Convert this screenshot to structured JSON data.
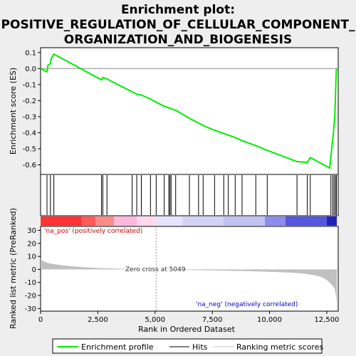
{
  "chart_data": {
    "type": "line",
    "title_lines": [
      "Enrichment plot:",
      "POSITIVE_REGULATION_OF_CELLULAR_COMPONENT_",
      "ORGANIZATION_AND_BIOGENESIS"
    ],
    "top_panel": {
      "ylabel": "Enrichment score (ES)",
      "ylim": [
        -0.66,
        0.13
      ],
      "yticks": [
        0.1,
        0.0,
        -0.1,
        -0.2,
        -0.3,
        -0.4,
        -0.5,
        -0.6
      ],
      "ytick_labels": [
        "0.1",
        "0.0",
        "-0.1",
        "-0.2",
        "-0.3",
        "-0.4",
        "-0.5",
        "-0.6"
      ],
      "series": [
        {
          "name": "Enrichment profile",
          "color": "#00ee00",
          "x": [
            0,
            280,
            320,
            430,
            460,
            580,
            2660,
            2720,
            2900,
            4000,
            4200,
            4400,
            4800,
            5050,
            5400,
            5600,
            5700,
            5900,
            6500,
            6900,
            7100,
            7600,
            8000,
            8200,
            8500,
            8800,
            9400,
            9900,
            11200,
            11650,
            11780,
            12630,
            12700,
            12780,
            12850,
            12920
          ],
          "y": [
            0.0,
            -0.02,
            0.02,
            0.03,
            0.06,
            0.09,
            -0.07,
            -0.055,
            -0.065,
            -0.145,
            -0.16,
            -0.165,
            -0.19,
            -0.21,
            -0.235,
            -0.245,
            -0.25,
            -0.26,
            -0.31,
            -0.34,
            -0.355,
            -0.385,
            -0.405,
            -0.415,
            -0.43,
            -0.45,
            -0.48,
            -0.51,
            -0.58,
            -0.585,
            -0.555,
            -0.62,
            -0.52,
            -0.415,
            -0.3,
            0.0
          ]
        }
      ]
    },
    "hits": [
      280,
      430,
      580,
      2660,
      2720,
      2900,
      4000,
      4200,
      4400,
      4800,
      5050,
      5400,
      5600,
      5650,
      5700,
      5900,
      6500,
      6900,
      7100,
      7600,
      8000,
      8200,
      8500,
      8800,
      9400,
      9900,
      11200,
      11650,
      11780,
      12680,
      12760,
      12820,
      12880,
      12920
    ],
    "bottom_panel": {
      "ylabel": "Ranked list metric (PreRanked)",
      "xlabel": "Rank in Ordered Dataset",
      "ylim": [
        -32,
        33
      ],
      "yticks": [
        30,
        20,
        10,
        0,
        -10,
        -20,
        -30
      ],
      "ytick_labels": [
        "30",
        "20",
        "10",
        "0",
        "-10",
        "-20",
        "-30"
      ],
      "xlim": [
        0,
        13000
      ],
      "xticks": [
        0,
        2500,
        5000,
        7500,
        10000,
        12500
      ],
      "xtick_labels": [
        "0",
        "2,500",
        "5,000",
        "7,500",
        "10,000",
        "12,500"
      ],
      "metric_x": [
        0,
        100,
        300,
        600,
        1000,
        1500,
        2000,
        2500,
        3000,
        4000,
        5049,
        6000,
        7000,
        8000,
        9000,
        10000,
        11000,
        11500,
        12000,
        12300,
        12500,
        12650,
        12750,
        12850,
        12920,
        12940
      ],
      "metric_y": [
        8.5,
        6.5,
        5,
        4,
        3,
        2.2,
        1.6,
        1.1,
        0.8,
        0.3,
        0,
        -0.3,
        -0.6,
        -0.9,
        -1.3,
        -1.8,
        -2.5,
        -3.2,
        -4.5,
        -6,
        -8,
        -10.5,
        -12.5,
        -15,
        -22,
        -29
      ],
      "zero_cross_label": "Zero cross at 5049",
      "zero_cross": 5049,
      "pos_label": "'na_pos' (positively correlated)",
      "neg_label": "'na_neg' (negatively correlated)"
    },
    "heat_bar": [
      {
        "from": 0,
        "to": 1800,
        "color": "#ff3333"
      },
      {
        "from": 1800,
        "to": 2400,
        "color": "#ff5a5a"
      },
      {
        "from": 2400,
        "to": 3200,
        "color": "#ff8a8a"
      },
      {
        "from": 3200,
        "to": 4200,
        "color": "#ffb8dc"
      },
      {
        "from": 4200,
        "to": 5049,
        "color": "#ffd8ee"
      },
      {
        "from": 5049,
        "to": 6200,
        "color": "#e4e4fa"
      },
      {
        "from": 6200,
        "to": 8000,
        "color": "#d2d2f6"
      },
      {
        "from": 8000,
        "to": 9800,
        "color": "#c2c2f2"
      },
      {
        "from": 9800,
        "to": 10700,
        "color": "#8c8cec"
      },
      {
        "from": 10700,
        "to": 12500,
        "color": "#5555dd"
      },
      {
        "from": 12500,
        "to": 12940,
        "color": "#2222bb"
      }
    ],
    "legend": [
      {
        "label": "Enrichment profile",
        "color": "#00ee00"
      },
      {
        "label": "Hits",
        "color": "#000000"
      },
      {
        "label": "Ranking metric scores",
        "color": "#c0c0c0"
      }
    ]
  }
}
